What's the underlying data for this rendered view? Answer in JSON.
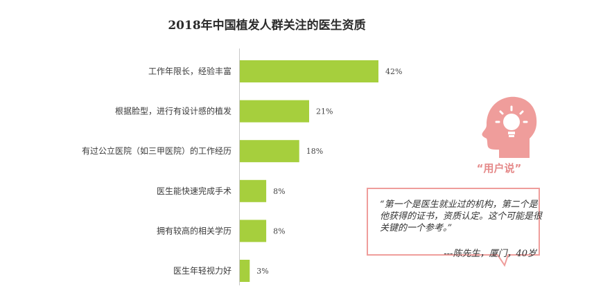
{
  "title": "2018年中国植发人群关注的医生资质",
  "chart_data": {
    "type": "bar",
    "orientation": "horizontal",
    "categories": [
      "工作年限长，经验丰富",
      "根据脸型，进行有设计感的植发",
      "有过公立医院（如三甲医院）的工作经历",
      "医生能快速完成手术",
      "拥有较高的相关学历",
      "医生年轻视力好"
    ],
    "values": [
      42,
      21,
      18,
      8,
      8,
      3
    ],
    "value_labels": [
      "42%",
      "21%",
      "18%",
      "8%",
      "8%",
      "3%"
    ],
    "unit": "%",
    "bar_color": "#a6cf3d",
    "xlim": [
      0,
      42
    ]
  },
  "callout": {
    "badge": "“用户说”",
    "quote": "“第一个是医生就业过的机构，第二个是他获得的证书，资质认定。这个可能是很关键的一个参考。”",
    "author": "---陈先生，厦门，40岁",
    "accent_color": "#ef9d9b"
  }
}
